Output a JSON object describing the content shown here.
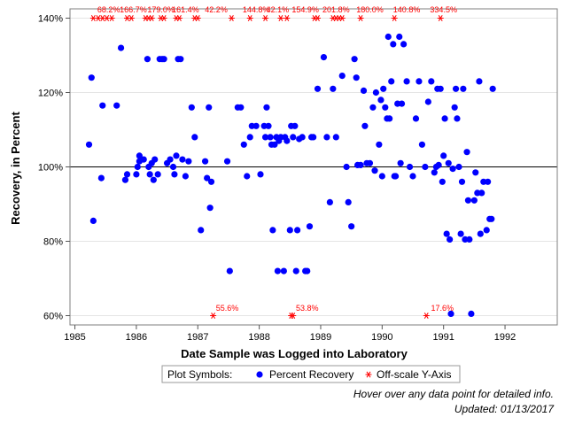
{
  "chart_data": {
    "type": "scatter",
    "xlabel": "Date Sample was Logged into Laboratory",
    "ylabel": "Recovery, in Percent",
    "xlim": [
      1984.92,
      1992.85
    ],
    "ylim": [
      57.5,
      142.5
    ],
    "x_ticks": [
      "1985",
      "1986",
      "1987",
      "1988",
      "1989",
      "1990",
      "1991",
      "1992"
    ],
    "y_ticks": [
      "60%",
      "80%",
      "100%",
      "120%",
      "140%"
    ],
    "reference_line_y": 100,
    "grid": true,
    "series": [
      {
        "name": "Percent Recovery",
        "color": "#0000ff",
        "marker": "filled-circle",
        "points": [
          [
            1985.23,
            106
          ],
          [
            1985.27,
            124
          ],
          [
            1985.3,
            85.5
          ],
          [
            1985.43,
            97
          ],
          [
            1985.45,
            116.5
          ],
          [
            1985.68,
            116.5
          ],
          [
            1985.75,
            132
          ],
          [
            1985.82,
            96.5
          ],
          [
            1985.85,
            98
          ],
          [
            1986.0,
            98
          ],
          [
            1986.02,
            100
          ],
          [
            1986.05,
            101.5
          ],
          [
            1986.05,
            103
          ],
          [
            1986.08,
            102
          ],
          [
            1986.12,
            102
          ],
          [
            1986.18,
            129
          ],
          [
            1986.2,
            100
          ],
          [
            1986.22,
            98
          ],
          [
            1986.25,
            101
          ],
          [
            1986.28,
            96.5
          ],
          [
            1986.3,
            102
          ],
          [
            1986.35,
            98
          ],
          [
            1986.38,
            129
          ],
          [
            1986.42,
            129
          ],
          [
            1986.45,
            129
          ],
          [
            1986.5,
            101
          ],
          [
            1986.55,
            102
          ],
          [
            1986.6,
            100
          ],
          [
            1986.62,
            98
          ],
          [
            1986.65,
            103
          ],
          [
            1986.68,
            129
          ],
          [
            1986.72,
            129
          ],
          [
            1986.75,
            102
          ],
          [
            1986.8,
            97.5
          ],
          [
            1986.85,
            101.5
          ],
          [
            1986.9,
            116
          ],
          [
            1986.95,
            108
          ],
          [
            1987.05,
            83
          ],
          [
            1987.12,
            101.5
          ],
          [
            1987.15,
            97
          ],
          [
            1987.18,
            116
          ],
          [
            1987.2,
            89
          ],
          [
            1987.22,
            96
          ],
          [
            1987.48,
            101.5
          ],
          [
            1987.52,
            72
          ],
          [
            1987.65,
            116
          ],
          [
            1987.7,
            116
          ],
          [
            1987.75,
            106
          ],
          [
            1987.8,
            97.5
          ],
          [
            1987.85,
            108
          ],
          [
            1987.88,
            111
          ],
          [
            1987.95,
            111
          ],
          [
            1988.02,
            98
          ],
          [
            1988.08,
            111
          ],
          [
            1988.1,
            108
          ],
          [
            1988.12,
            116
          ],
          [
            1988.15,
            111
          ],
          [
            1988.18,
            108
          ],
          [
            1988.2,
            106
          ],
          [
            1988.22,
            83
          ],
          [
            1988.25,
            106
          ],
          [
            1988.28,
            108
          ],
          [
            1988.3,
            72
          ],
          [
            1988.32,
            107
          ],
          [
            1988.35,
            108
          ],
          [
            1988.4,
            72
          ],
          [
            1988.42,
            108
          ],
          [
            1988.45,
            107
          ],
          [
            1988.5,
            83
          ],
          [
            1988.52,
            111
          ],
          [
            1988.55,
            108
          ],
          [
            1988.58,
            111
          ],
          [
            1988.6,
            72
          ],
          [
            1988.62,
            83
          ],
          [
            1988.65,
            107.5
          ],
          [
            1988.7,
            108
          ],
          [
            1988.75,
            72
          ],
          [
            1988.78,
            72
          ],
          [
            1988.82,
            84
          ],
          [
            1988.85,
            108
          ],
          [
            1988.88,
            108
          ],
          [
            1988.95,
            121
          ],
          [
            1989.05,
            129.5
          ],
          [
            1989.1,
            108
          ],
          [
            1989.15,
            90.5
          ],
          [
            1989.2,
            121
          ],
          [
            1989.25,
            108
          ],
          [
            1989.35,
            124.5
          ],
          [
            1989.42,
            100
          ],
          [
            1989.45,
            90.5
          ],
          [
            1989.5,
            84
          ],
          [
            1989.55,
            129
          ],
          [
            1989.58,
            124
          ],
          [
            1989.6,
            100.5
          ],
          [
            1989.65,
            100.5
          ],
          [
            1989.7,
            120.5
          ],
          [
            1989.72,
            111
          ],
          [
            1989.75,
            101
          ],
          [
            1989.8,
            101
          ],
          [
            1989.85,
            116
          ],
          [
            1989.88,
            99
          ],
          [
            1989.9,
            120
          ],
          [
            1989.95,
            106
          ],
          [
            1989.98,
            118
          ],
          [
            1990.0,
            97.5
          ],
          [
            1990.02,
            121
          ],
          [
            1990.05,
            116
          ],
          [
            1990.08,
            113
          ],
          [
            1990.1,
            135
          ],
          [
            1990.12,
            113
          ],
          [
            1990.15,
            123
          ],
          [
            1990.18,
            133
          ],
          [
            1990.2,
            97.5
          ],
          [
            1990.22,
            97.5
          ],
          [
            1990.25,
            117
          ],
          [
            1990.28,
            135
          ],
          [
            1990.3,
            101
          ],
          [
            1990.32,
            117
          ],
          [
            1990.35,
            133
          ],
          [
            1990.4,
            123
          ],
          [
            1990.45,
            100
          ],
          [
            1990.5,
            97.5
          ],
          [
            1990.55,
            113
          ],
          [
            1990.6,
            123
          ],
          [
            1990.65,
            106
          ],
          [
            1990.7,
            100
          ],
          [
            1990.75,
            117.5
          ],
          [
            1990.8,
            123
          ],
          [
            1990.85,
            98.5
          ],
          [
            1990.88,
            100
          ],
          [
            1990.9,
            121
          ],
          [
            1990.92,
            100.5
          ],
          [
            1990.95,
            121
          ],
          [
            1990.98,
            96
          ],
          [
            1991.0,
            103
          ],
          [
            1991.02,
            113
          ],
          [
            1991.05,
            82
          ],
          [
            1991.08,
            101
          ],
          [
            1991.1,
            80.5
          ],
          [
            1991.12,
            60.5
          ],
          [
            1991.15,
            99.5
          ],
          [
            1991.18,
            116
          ],
          [
            1991.2,
            121
          ],
          [
            1991.22,
            113
          ],
          [
            1991.25,
            100
          ],
          [
            1991.28,
            82
          ],
          [
            1991.3,
            96
          ],
          [
            1991.32,
            121
          ],
          [
            1991.35,
            80.5
          ],
          [
            1991.38,
            104
          ],
          [
            1991.4,
            91
          ],
          [
            1991.42,
            80.5
          ],
          [
            1991.45,
            60.5
          ],
          [
            1991.5,
            91
          ],
          [
            1991.52,
            98.5
          ],
          [
            1991.55,
            93
          ],
          [
            1991.58,
            123
          ],
          [
            1991.6,
            82
          ],
          [
            1991.62,
            93
          ],
          [
            1991.65,
            96
          ],
          [
            1991.7,
            83
          ],
          [
            1991.72,
            96
          ],
          [
            1991.75,
            86
          ],
          [
            1991.78,
            86
          ],
          [
            1991.8,
            121
          ]
        ]
      },
      {
        "name": "Off-scale Y-Axis",
        "color": "#ff0000",
        "marker": "asterisk",
        "points": [
          [
            1985.3,
            140
          ],
          [
            1985.38,
            140
          ],
          [
            1985.45,
            140
          ],
          [
            1985.52,
            140
          ],
          [
            1985.6,
            140
          ],
          [
            1985.85,
            140
          ],
          [
            1985.92,
            140
          ],
          [
            1986.15,
            140
          ],
          [
            1986.2,
            140
          ],
          [
            1986.25,
            140
          ],
          [
            1986.4,
            140
          ],
          [
            1986.45,
            140
          ],
          [
            1986.65,
            140
          ],
          [
            1986.7,
            140
          ],
          [
            1986.95,
            140
          ],
          [
            1987.0,
            140
          ],
          [
            1987.55,
            140
          ],
          [
            1987.85,
            140
          ],
          [
            1988.1,
            140
          ],
          [
            1988.35,
            140
          ],
          [
            1988.45,
            140
          ],
          [
            1988.9,
            140
          ],
          [
            1988.95,
            140
          ],
          [
            1989.2,
            140
          ],
          [
            1989.25,
            140
          ],
          [
            1989.3,
            140
          ],
          [
            1989.35,
            140
          ],
          [
            1989.65,
            140
          ],
          [
            1990.2,
            140
          ],
          [
            1990.95,
            140
          ],
          [
            1987.25,
            60
          ],
          [
            1988.52,
            60
          ],
          [
            1988.55,
            60
          ],
          [
            1990.72,
            60
          ]
        ]
      }
    ],
    "offscale_labels": [
      {
        "x": 1985.55,
        "y": "top",
        "text": "68.2%"
      },
      {
        "x": 1985.95,
        "y": "top",
        "text": "166.7%"
      },
      {
        "x": 1986.4,
        "y": "top",
        "text": "179.0%"
      },
      {
        "x": 1986.8,
        "y": "top",
        "text": "161.4%"
      },
      {
        "x": 1987.3,
        "y": "top",
        "text": "42.2%"
      },
      {
        "x": 1987.95,
        "y": "top",
        "text": "144.8%"
      },
      {
        "x": 1988.3,
        "y": "top",
        "text": "42.1%"
      },
      {
        "x": 1988.75,
        "y": "top",
        "text": "154.9%"
      },
      {
        "x": 1989.25,
        "y": "top",
        "text": "201.8%"
      },
      {
        "x": 1989.8,
        "y": "top",
        "text": "180.0%"
      },
      {
        "x": 1990.4,
        "y": "top",
        "text": "140.8%"
      },
      {
        "x": 1991.0,
        "y": "top",
        "text": "334.5%"
      },
      {
        "x": 1987.48,
        "y": "bottom",
        "text": "55.6%"
      },
      {
        "x": 1988.78,
        "y": "bottom",
        "text": "53.8%"
      },
      {
        "x": 1990.98,
        "y": "bottom",
        "text": "17.6%"
      }
    ]
  },
  "legend": {
    "title": "Plot Symbols:",
    "items": [
      {
        "label": "Percent Recovery",
        "color": "#0000ff",
        "icon": "filled-circle-icon"
      },
      {
        "label": "Off-scale Y-Axis",
        "color": "#ff0000",
        "icon": "asterisk-icon"
      }
    ]
  },
  "footnotes": {
    "hover_hint": "Hover over any data point for detailed info.",
    "updated": "Updated: 01/13/2017"
  }
}
